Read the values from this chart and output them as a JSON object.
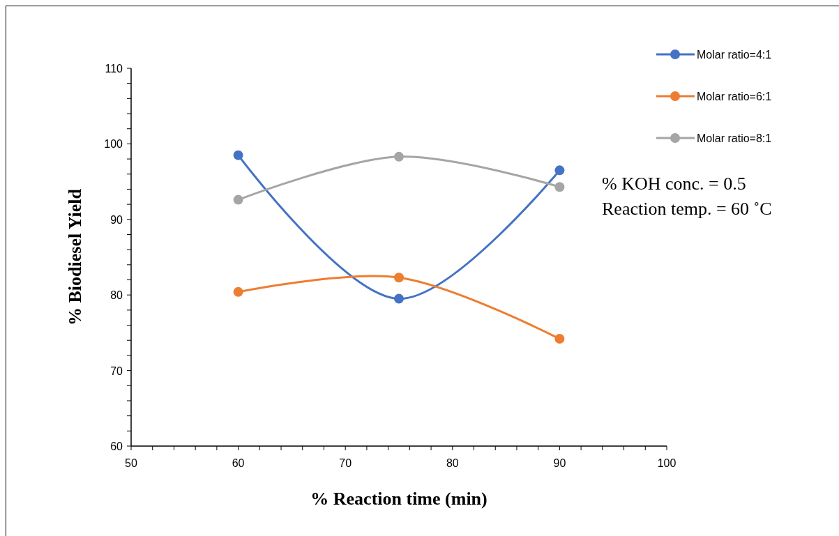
{
  "chart_data": {
    "type": "line",
    "xlabel": "% Reaction time (min)",
    "ylabel": "% Biodiesel Yield",
    "x": [
      60,
      75,
      90
    ],
    "series": [
      {
        "name": "Molar ratio=4:1",
        "color": "#4472c4",
        "values": [
          98.5,
          79.5,
          96.5
        ]
      },
      {
        "name": "Molar ratio=6:1",
        "color": "#ed7d31",
        "values": [
          80.4,
          82.3,
          74.2
        ]
      },
      {
        "name": "Molar ratio=8:1",
        "color": "#a5a5a5",
        "values": [
          92.6,
          98.3,
          94.3
        ]
      }
    ],
    "xlim": [
      50,
      100
    ],
    "xticks": [
      50,
      {
        "value": 52,
        "label": null
      },
      {
        "value": 54,
        "label": null
      },
      {
        "value": 56,
        "label": null
      },
      {
        "value": 58,
        "label": null
      },
      60,
      {
        "value": 62,
        "label": null
      },
      {
        "value": 64,
        "label": null
      },
      {
        "value": 66,
        "label": null
      },
      {
        "value": 68,
        "label": null
      },
      70,
      {
        "value": 72,
        "label": null
      },
      {
        "value": 74,
        "label": null
      },
      {
        "value": 76,
        "label": null
      },
      {
        "value": 78,
        "label": null
      },
      80,
      {
        "value": 82,
        "label": null
      },
      {
        "value": 84,
        "label": null
      },
      {
        "value": 86,
        "label": null
      },
      {
        "value": 88,
        "label": null
      },
      90,
      {
        "value": 92,
        "label": null
      },
      {
        "value": 94,
        "label": null
      },
      {
        "value": 96,
        "label": null
      },
      {
        "value": 98,
        "label": null
      },
      100
    ],
    "ylim": [
      60,
      110
    ],
    "yticks": [
      60,
      {
        "value": 62,
        "label": null
      },
      {
        "value": 64,
        "label": null
      },
      {
        "value": 66,
        "label": null
      },
      {
        "value": 68,
        "label": null
      },
      70,
      {
        "value": 72,
        "label": null
      },
      {
        "value": 74,
        "label": null
      },
      {
        "value": 76,
        "label": null
      },
      {
        "value": 78,
        "label": null
      },
      80,
      {
        "value": 82,
        "label": null
      },
      {
        "value": 84,
        "label": null
      },
      {
        "value": 86,
        "label": null
      },
      {
        "value": 88,
        "label": null
      },
      90,
      {
        "value": 92,
        "label": null
      },
      {
        "value": 94,
        "label": null
      },
      {
        "value": 96,
        "label": null
      },
      {
        "value": 98,
        "label": null
      },
      100,
      {
        "value": 102,
        "label": null
      },
      {
        "value": 104,
        "label": null
      },
      {
        "value": 106,
        "label": null
      },
      {
        "value": 108,
        "label": null
      },
      110
    ],
    "annotations": [
      "% KOH conc. = 0.5",
      "Reaction temp. = 60 ˚C"
    ],
    "legend": "top right",
    "marker": "circle",
    "line_style": "solid",
    "grid": false
  }
}
